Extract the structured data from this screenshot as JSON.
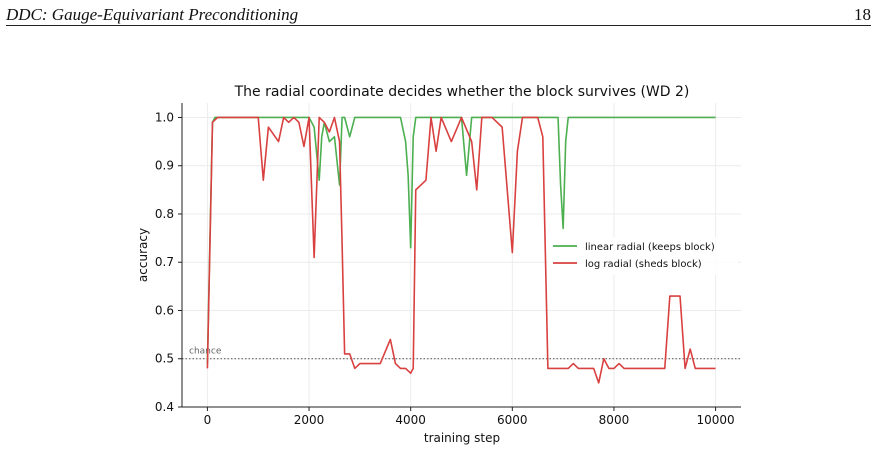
{
  "header": {
    "title": "DDC: Gauge-Equivariant Preconditioning",
    "page_number": "18"
  },
  "chart_data": {
    "type": "line",
    "title": "The radial coordinate decides whether the block survives (WD 2)",
    "xlabel": "training step",
    "ylabel": "accuracy",
    "xlim": [
      -500,
      10500
    ],
    "ylim": [
      0.4,
      1.03
    ],
    "xticks": [
      0,
      2000,
      4000,
      6000,
      8000,
      10000
    ],
    "yticks": [
      0.4,
      0.5,
      0.6,
      0.7,
      0.8,
      0.9,
      1.0
    ],
    "grid": true,
    "legend_position": "center-right",
    "reference_line": {
      "y": 0.5,
      "label": "chance",
      "color": "#555555"
    },
    "series": [
      {
        "name": "linear radial (keeps block)",
        "color": "#4caf50",
        "x": [
          0,
          50,
          100,
          150,
          200,
          300,
          500,
          1000,
          1500,
          1800,
          2000,
          2100,
          2200,
          2250,
          2300,
          2400,
          2500,
          2600,
          2650,
          2700,
          2800,
          2900,
          3000,
          3200,
          3500,
          3800,
          3900,
          3950,
          4000,
          4050,
          4100,
          4200,
          4500,
          5000,
          5100,
          5200,
          6000,
          6500,
          6900,
          6950,
          7000,
          7050,
          7100,
          7200,
          7500,
          8000,
          9000,
          10000
        ],
        "values": [
          0.49,
          0.75,
          0.99,
          1.0,
          1.0,
          1.0,
          1.0,
          1.0,
          1.0,
          1.0,
          1.0,
          0.98,
          0.87,
          0.96,
          0.99,
          0.95,
          0.96,
          0.86,
          1.0,
          1.0,
          0.96,
          1.0,
          1.0,
          1.0,
          1.0,
          1.0,
          0.95,
          0.88,
          0.73,
          0.96,
          1.0,
          1.0,
          1.0,
          1.0,
          0.88,
          1.0,
          1.0,
          1.0,
          1.0,
          0.86,
          0.77,
          0.95,
          1.0,
          1.0,
          1.0,
          1.0,
          1.0,
          1.0
        ]
      },
      {
        "name": "log radial (sheds block)",
        "color": "#d94040",
        "x": [
          0,
          100,
          200,
          500,
          1000,
          1100,
          1200,
          1400,
          1500,
          1600,
          1700,
          1800,
          1900,
          2000,
          2100,
          2200,
          2300,
          2400,
          2500,
          2600,
          2650,
          2700,
          2750,
          2800,
          2900,
          3000,
          3100,
          3200,
          3300,
          3400,
          3600,
          3700,
          3800,
          3900,
          4000,
          4050,
          4100,
          4200,
          4300,
          4400,
          4500,
          4600,
          4800,
          5000,
          5200,
          5300,
          5400,
          5500,
          5600,
          5800,
          6000,
          6100,
          6200,
          6300,
          6500,
          6600,
          6700,
          6800,
          6900,
          7000,
          7100,
          7200,
          7300,
          7400,
          7500,
          7600,
          7700,
          7800,
          7900,
          8000,
          8100,
          8200,
          8300,
          8400,
          8500,
          8600,
          8700,
          8900,
          9000,
          9100,
          9200,
          9300,
          9400,
          9500,
          9600,
          9700,
          10000
        ],
        "values": [
          0.48,
          0.99,
          1.0,
          1.0,
          1.0,
          0.87,
          0.98,
          0.95,
          1.0,
          0.99,
          1.0,
          0.99,
          0.94,
          1.0,
          0.71,
          1.0,
          0.99,
          0.97,
          1.0,
          0.95,
          0.74,
          0.51,
          0.51,
          0.51,
          0.48,
          0.49,
          0.49,
          0.49,
          0.49,
          0.49,
          0.54,
          0.49,
          0.48,
          0.48,
          0.47,
          0.48,
          0.85,
          0.86,
          0.87,
          1.0,
          0.93,
          1.0,
          0.95,
          1.0,
          0.95,
          0.85,
          1.0,
          1.0,
          1.0,
          0.98,
          0.72,
          0.93,
          1.0,
          1.0,
          1.0,
          0.96,
          0.48,
          0.48,
          0.48,
          0.48,
          0.48,
          0.49,
          0.48,
          0.48,
          0.48,
          0.48,
          0.45,
          0.5,
          0.48,
          0.48,
          0.49,
          0.48,
          0.48,
          0.48,
          0.48,
          0.48,
          0.48,
          0.48,
          0.48,
          0.63,
          0.63,
          0.63,
          0.48,
          0.52,
          0.48,
          0.48,
          0.48
        ]
      }
    ]
  }
}
